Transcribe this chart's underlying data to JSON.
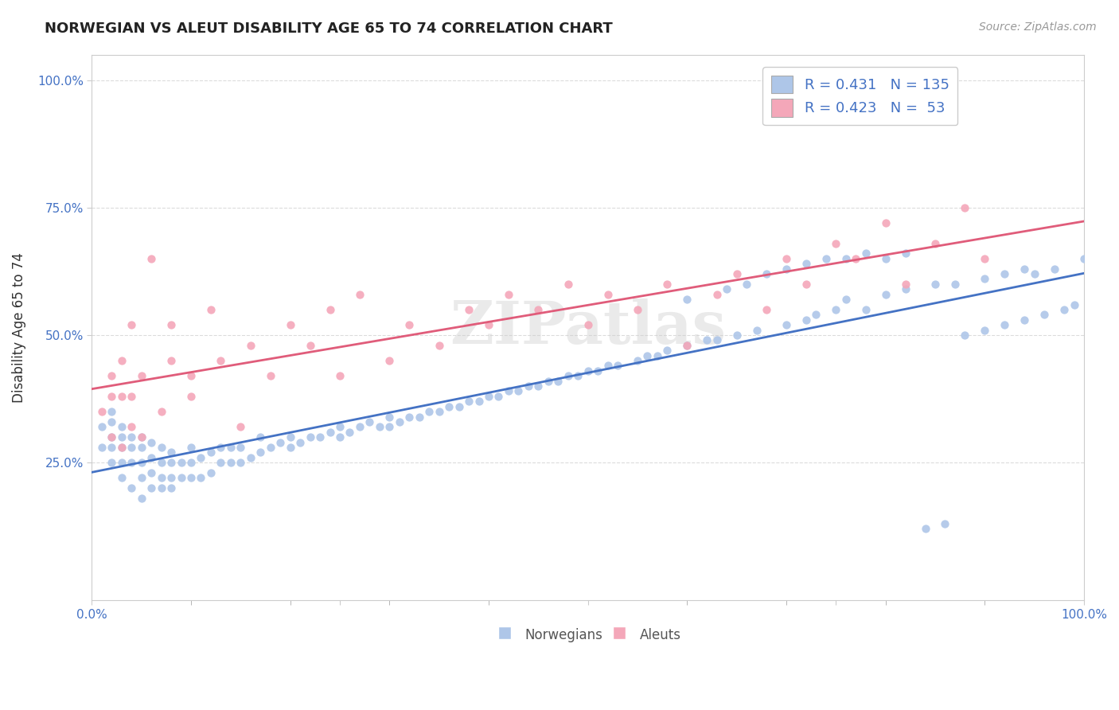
{
  "title": "NORWEGIAN VS ALEUT DISABILITY AGE 65 TO 74 CORRELATION CHART",
  "ylabel": "Disability Age 65 to 74",
  "source_text": "Source: ZipAtlas.com",
  "x_min": 0.0,
  "x_max": 1.0,
  "y_min": 0.0,
  "y_max": 1.0,
  "y_ticks": [
    0.25,
    0.5,
    0.75,
    1.0
  ],
  "y_tick_labels": [
    "25.0%",
    "50.0%",
    "75.0%",
    "100.0%"
  ],
  "norwegians_R": 0.431,
  "norwegians_N": 135,
  "aleuts_R": 0.423,
  "aleuts_N": 53,
  "norwegian_color": "#aec6e8",
  "aleut_color": "#f4a7b9",
  "norwegian_line_color": "#4472c4",
  "aleut_line_color": "#e05c7a",
  "background_color": "#ffffff",
  "grid_color": "#cccccc",
  "norwegians_x": [
    0.01,
    0.01,
    0.02,
    0.02,
    0.02,
    0.02,
    0.02,
    0.03,
    0.03,
    0.03,
    0.03,
    0.03,
    0.04,
    0.04,
    0.04,
    0.04,
    0.05,
    0.05,
    0.05,
    0.05,
    0.05,
    0.06,
    0.06,
    0.06,
    0.06,
    0.07,
    0.07,
    0.07,
    0.07,
    0.08,
    0.08,
    0.08,
    0.08,
    0.09,
    0.09,
    0.1,
    0.1,
    0.1,
    0.11,
    0.11,
    0.12,
    0.12,
    0.13,
    0.13,
    0.14,
    0.14,
    0.15,
    0.15,
    0.16,
    0.17,
    0.17,
    0.18,
    0.19,
    0.2,
    0.2,
    0.21,
    0.22,
    0.23,
    0.24,
    0.25,
    0.25,
    0.26,
    0.27,
    0.28,
    0.29,
    0.3,
    0.3,
    0.31,
    0.32,
    0.33,
    0.34,
    0.35,
    0.36,
    0.37,
    0.38,
    0.39,
    0.4,
    0.41,
    0.42,
    0.43,
    0.44,
    0.45,
    0.46,
    0.47,
    0.48,
    0.49,
    0.5,
    0.51,
    0.52,
    0.53,
    0.55,
    0.56,
    0.57,
    0.58,
    0.6,
    0.62,
    0.63,
    0.65,
    0.67,
    0.7,
    0.72,
    0.73,
    0.75,
    0.76,
    0.78,
    0.8,
    0.82,
    0.85,
    0.87,
    0.9,
    0.92,
    0.94,
    0.95,
    0.97,
    1.0,
    0.6,
    0.64,
    0.66,
    0.68,
    0.7,
    0.72,
    0.74,
    0.76,
    0.78,
    0.8,
    0.82,
    0.84,
    0.86,
    0.88,
    0.9,
    0.92,
    0.94,
    0.96,
    0.98,
    0.99
  ],
  "norwegians_y": [
    0.28,
    0.32,
    0.25,
    0.28,
    0.3,
    0.33,
    0.35,
    0.22,
    0.25,
    0.28,
    0.3,
    0.32,
    0.2,
    0.25,
    0.28,
    0.3,
    0.18,
    0.22,
    0.25,
    0.28,
    0.3,
    0.2,
    0.23,
    0.26,
    0.29,
    0.2,
    0.22,
    0.25,
    0.28,
    0.2,
    0.22,
    0.25,
    0.27,
    0.22,
    0.25,
    0.22,
    0.25,
    0.28,
    0.22,
    0.26,
    0.23,
    0.27,
    0.25,
    0.28,
    0.25,
    0.28,
    0.25,
    0.28,
    0.26,
    0.27,
    0.3,
    0.28,
    0.29,
    0.28,
    0.3,
    0.29,
    0.3,
    0.3,
    0.31,
    0.3,
    0.32,
    0.31,
    0.32,
    0.33,
    0.32,
    0.32,
    0.34,
    0.33,
    0.34,
    0.34,
    0.35,
    0.35,
    0.36,
    0.36,
    0.37,
    0.37,
    0.38,
    0.38,
    0.39,
    0.39,
    0.4,
    0.4,
    0.41,
    0.41,
    0.42,
    0.42,
    0.43,
    0.43,
    0.44,
    0.44,
    0.45,
    0.46,
    0.46,
    0.47,
    0.48,
    0.49,
    0.49,
    0.5,
    0.51,
    0.52,
    0.53,
    0.54,
    0.55,
    0.57,
    0.55,
    0.58,
    0.59,
    0.6,
    0.6,
    0.61,
    0.62,
    0.63,
    0.62,
    0.63,
    0.65,
    0.57,
    0.59,
    0.6,
    0.62,
    0.63,
    0.64,
    0.65,
    0.65,
    0.66,
    0.65,
    0.66,
    0.12,
    0.13,
    0.5,
    0.51,
    0.52,
    0.53,
    0.54,
    0.55,
    0.56
  ],
  "aleuts_x": [
    0.01,
    0.02,
    0.02,
    0.02,
    0.03,
    0.03,
    0.03,
    0.04,
    0.04,
    0.04,
    0.05,
    0.05,
    0.06,
    0.07,
    0.08,
    0.08,
    0.1,
    0.1,
    0.12,
    0.13,
    0.15,
    0.16,
    0.18,
    0.2,
    0.22,
    0.24,
    0.25,
    0.27,
    0.3,
    0.32,
    0.35,
    0.38,
    0.4,
    0.42,
    0.45,
    0.48,
    0.5,
    0.52,
    0.55,
    0.58,
    0.6,
    0.63,
    0.65,
    0.68,
    0.7,
    0.72,
    0.75,
    0.77,
    0.8,
    0.82,
    0.85,
    0.88,
    0.9
  ],
  "aleuts_y": [
    0.35,
    0.3,
    0.38,
    0.42,
    0.28,
    0.38,
    0.45,
    0.32,
    0.38,
    0.52,
    0.3,
    0.42,
    0.65,
    0.35,
    0.45,
    0.52,
    0.38,
    0.42,
    0.55,
    0.45,
    0.32,
    0.48,
    0.42,
    0.52,
    0.48,
    0.55,
    0.42,
    0.58,
    0.45,
    0.52,
    0.48,
    0.55,
    0.52,
    0.58,
    0.55,
    0.6,
    0.52,
    0.58,
    0.55,
    0.6,
    0.48,
    0.58,
    0.62,
    0.55,
    0.65,
    0.6,
    0.68,
    0.65,
    0.72,
    0.6,
    0.68,
    0.75,
    0.65
  ]
}
